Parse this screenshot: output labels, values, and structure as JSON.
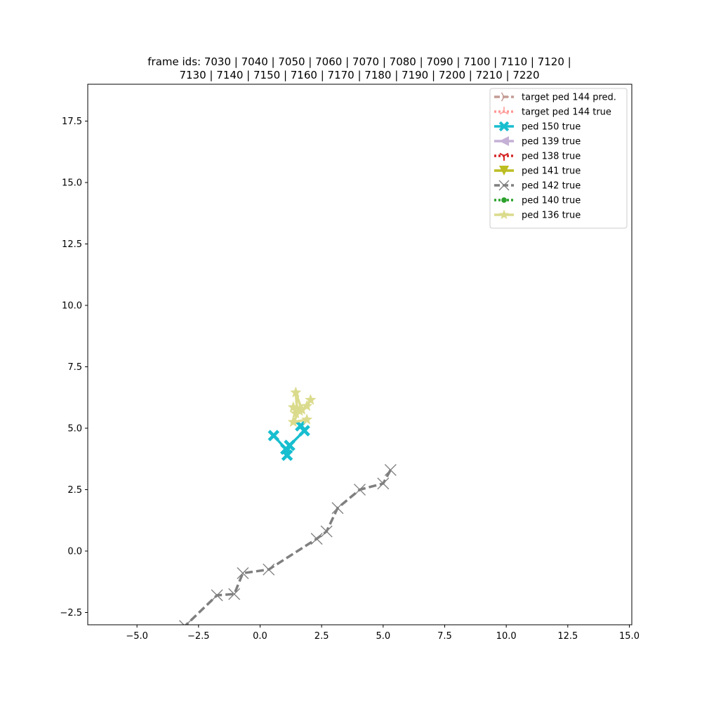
{
  "chart_data": {
    "type": "line",
    "title_lines": [
      "frame ids: 7030 | 7040 | 7050 | 7060 | 7070 | 7080 | 7090 | 7100 | 7110 | 7120 |",
      "7130 | 7140 | 7150 | 7160 | 7170 | 7180 | 7190 | 7200 | 7210 | 7220"
    ],
    "xlabel": "",
    "ylabel": "",
    "xlim": [
      -7,
      15.1
    ],
    "ylim": [
      -3.0,
      19.0
    ],
    "xticks": [
      -5.0,
      -2.5,
      0.0,
      2.5,
      5.0,
      7.5,
      10.0,
      12.5,
      15.0
    ],
    "xtick_labels": [
      "−5.0",
      "−2.5",
      "0.0",
      "2.5",
      "5.0",
      "7.5",
      "10.0",
      "12.5",
      "15.0"
    ],
    "yticks": [
      -2.5,
      0.0,
      2.5,
      5.0,
      7.5,
      10.0,
      12.5,
      15.0,
      17.5
    ],
    "ytick_labels": [
      "−2.5",
      "0.0",
      "2.5",
      "5.0",
      "7.5",
      "10.0",
      "12.5",
      "15.0",
      "17.5"
    ],
    "grid": false,
    "legend_position": "top-right",
    "series": [
      {
        "name": "target ped 144 pred.",
        "color": "#c49c94",
        "marker": "tri-right",
        "dash": "dashed",
        "points": []
      },
      {
        "name": "target ped 144 true",
        "color": "#ff9896",
        "marker": "tri-up",
        "dash": "dotted",
        "points": []
      },
      {
        "name": "ped 150 true",
        "color": "#17becf",
        "marker": "x-filled",
        "dash": "solid",
        "points": [
          [
            1.65,
            5.1
          ],
          [
            1.8,
            4.9
          ],
          [
            1.2,
            4.3
          ],
          [
            1.1,
            3.9
          ],
          [
            1.05,
            4.15
          ],
          [
            0.55,
            4.7
          ]
        ]
      },
      {
        "name": "ped 139 true",
        "color": "#c5b0d5",
        "marker": "triangle-left",
        "dash": "solid",
        "points": []
      },
      {
        "name": "ped 138 true",
        "color": "#d62728",
        "marker": "tri-down",
        "dash": "dotted",
        "points": []
      },
      {
        "name": "ped 141 true",
        "color": "#bcbd22",
        "marker": "triangle-down",
        "dash": "solid",
        "points": []
      },
      {
        "name": "ped 142 true",
        "color": "#7f7f7f",
        "marker": "x",
        "dash": "dashed",
        "points": [
          [
            5.3,
            3.3
          ],
          [
            5.0,
            2.75
          ],
          [
            4.05,
            2.5
          ],
          [
            3.15,
            1.75
          ],
          [
            2.7,
            0.8
          ],
          [
            2.3,
            0.5
          ],
          [
            0.35,
            -0.75
          ],
          [
            -0.7,
            -0.9
          ],
          [
            -1.05,
            -1.75
          ],
          [
            -1.75,
            -1.8
          ],
          [
            -3.05,
            -3.05
          ]
        ]
      },
      {
        "name": "ped 140 true",
        "color": "#2ca02c",
        "marker": "circle",
        "dash": "dotted",
        "points": []
      },
      {
        "name": "ped 136 true",
        "color": "#dbdb8d",
        "marker": "star",
        "dash": "solid",
        "points": [
          [
            1.9,
            5.35
          ],
          [
            1.35,
            5.25
          ],
          [
            1.6,
            5.7
          ],
          [
            1.45,
            5.6
          ],
          [
            1.35,
            5.85
          ],
          [
            1.5,
            5.8
          ],
          [
            1.45,
            6.45
          ],
          [
            1.7,
            5.75
          ],
          [
            1.9,
            5.9
          ],
          [
            2.05,
            6.15
          ]
        ]
      }
    ]
  }
}
